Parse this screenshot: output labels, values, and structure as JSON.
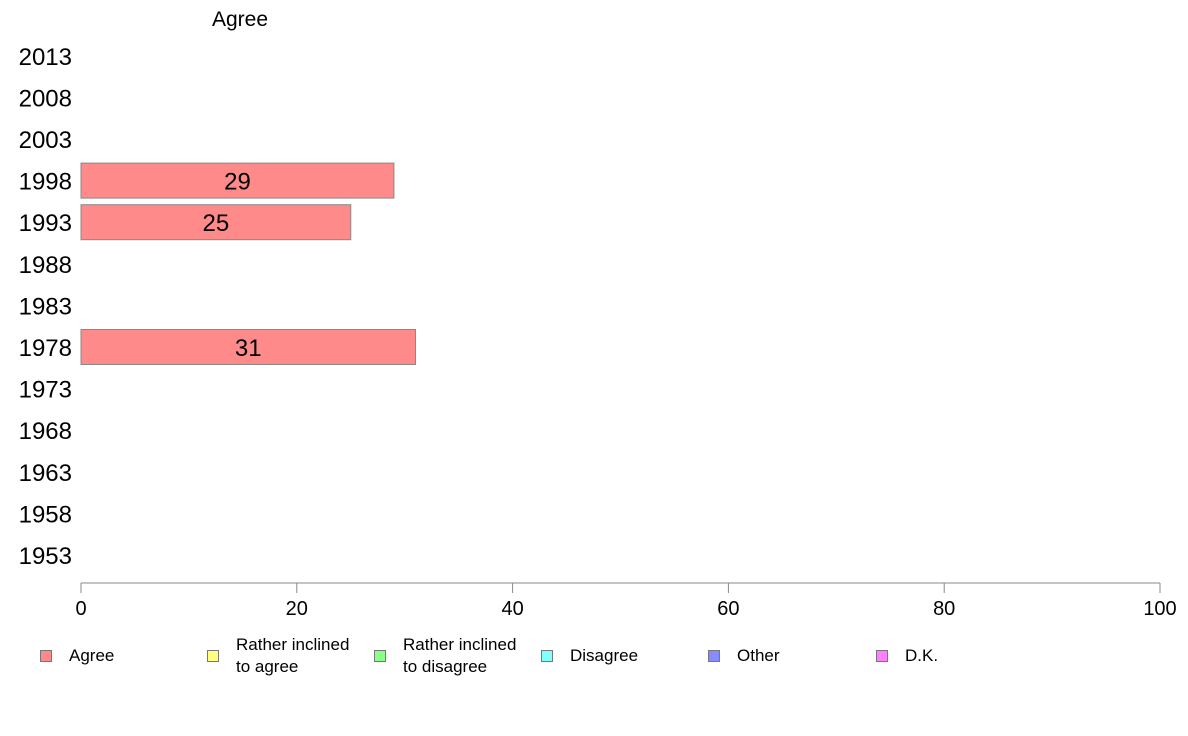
{
  "chart_data": {
    "type": "bar",
    "orientation": "horizontal",
    "series_header": "Agree",
    "categories": [
      "2013",
      "2008",
      "2003",
      "1998",
      "1993",
      "1988",
      "1983",
      "1978",
      "1973",
      "1968",
      "1963",
      "1958",
      "1953"
    ],
    "series": [
      {
        "name": "Agree",
        "color": "#ff8a8a",
        "values": [
          null,
          null,
          null,
          29,
          25,
          null,
          null,
          31,
          null,
          null,
          null,
          null,
          null
        ]
      }
    ],
    "data_labels": [
      "",
      "",
      "",
      "29",
      "25",
      "",
      "",
      "31",
      "",
      "",
      "",
      "",
      ""
    ],
    "xlim": [
      0,
      100
    ],
    "xticks": [
      "0",
      "20",
      "40",
      "60",
      "80",
      "100"
    ],
    "grid": false,
    "legend_position": "bottom"
  },
  "legend": {
    "items": [
      {
        "label": "Agree",
        "color": "#ff8a8a"
      },
      {
        "label": "Rather inclined\nto agree",
        "color": "#ffff80"
      },
      {
        "label": "Rather inclined\nto disagree",
        "color": "#8aff8a"
      },
      {
        "label": "Disagree",
        "color": "#80ffff"
      },
      {
        "label": "Other",
        "color": "#8a8aff"
      },
      {
        "label": "D.K.",
        "color": "#ff80ff"
      }
    ]
  }
}
